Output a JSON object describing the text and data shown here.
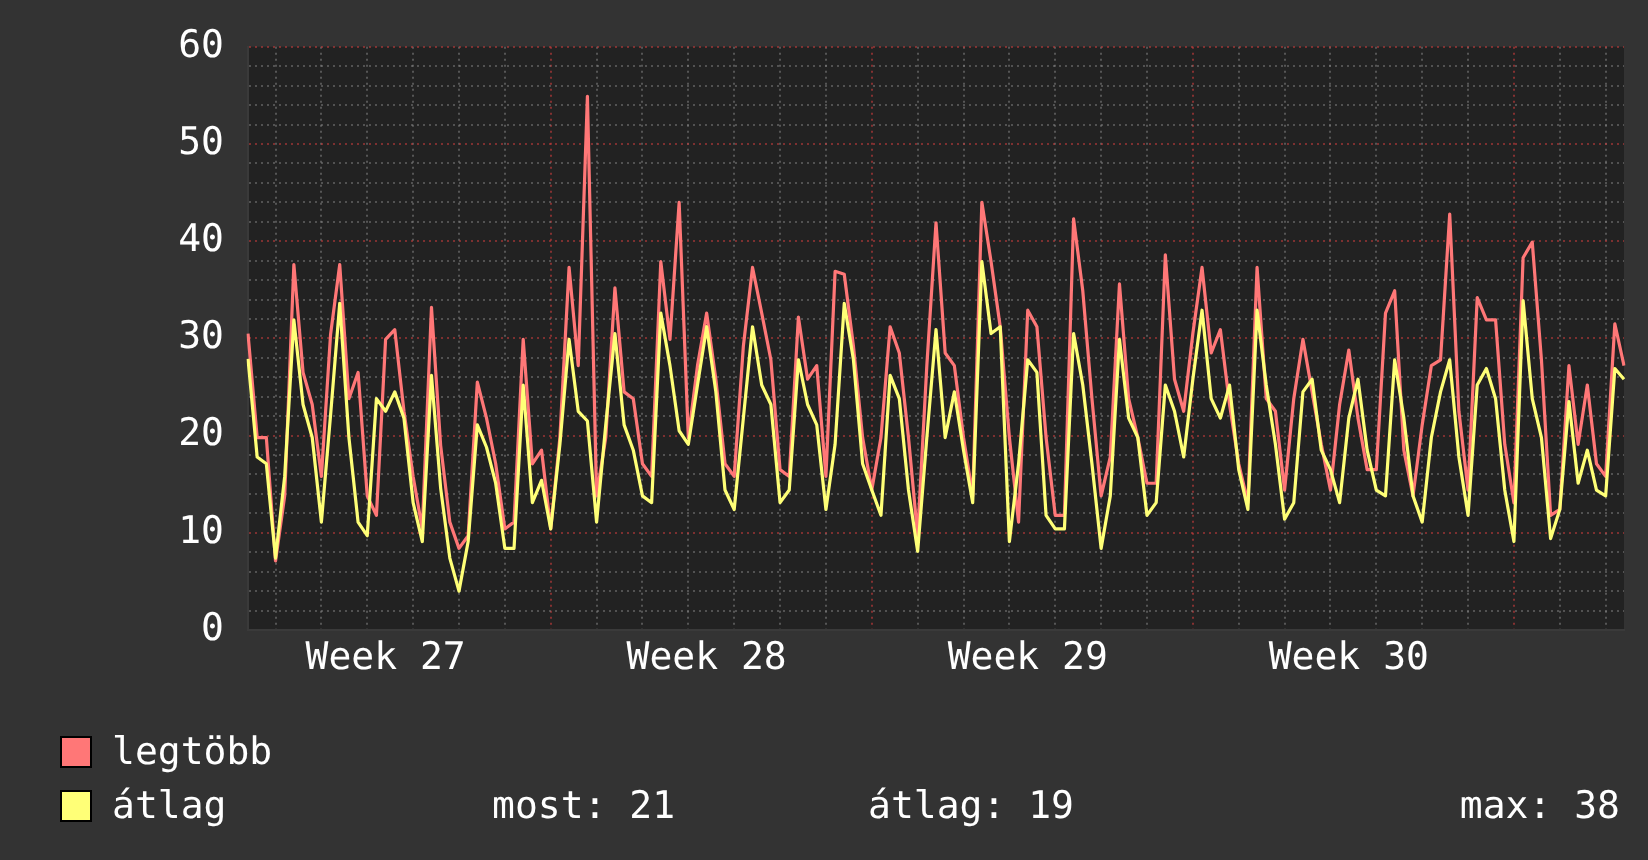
{
  "chart_data": {
    "type": "line",
    "categories": [
      null,
      null,
      null,
      null,
      null,
      null,
      null,
      null,
      null,
      null,
      null,
      null,
      null,
      null,
      null,
      "Week 27",
      null,
      null,
      null,
      null,
      null,
      null,
      null,
      null,
      null,
      null,
      null,
      null,
      null,
      null,
      null,
      null,
      null,
      null,
      null,
      null,
      null,
      null,
      null,
      null,
      null,
      null,
      null,
      null,
      null,
      null,
      null,
      null,
      null,
      null,
      "Week 28",
      null,
      null,
      null,
      null,
      null,
      null,
      null,
      null,
      null,
      null,
      null,
      null,
      null,
      null,
      null,
      null,
      null,
      null,
      null,
      null,
      null,
      null,
      null,
      null,
      null,
      null,
      null,
      null,
      null,
      null,
      null,
      null,
      null,
      null,
      "Week 29",
      null,
      null,
      null,
      null,
      null,
      null,
      null,
      null,
      null,
      null,
      null,
      null,
      null,
      null,
      null,
      null,
      null,
      null,
      null,
      null,
      null,
      null,
      null,
      null,
      null,
      null,
      null,
      null,
      null,
      null,
      null,
      null,
      null,
      null,
      "Week 30",
      null,
      null,
      null,
      null,
      null,
      null,
      null,
      null,
      null,
      null,
      null,
      null,
      null,
      null,
      null,
      null,
      null,
      null,
      null,
      null,
      null,
      null,
      null,
      null,
      null,
      null,
      null,
      null,
      null,
      null
    ],
    "ylim": [
      0,
      60
    ],
    "yticks": [
      0,
      {
        "value": 2,
        "label": null
      },
      {
        "value": 4,
        "label": null
      },
      {
        "value": 6,
        "label": null
      },
      {
        "value": 8,
        "label": null
      },
      10,
      {
        "value": 12,
        "label": null
      },
      {
        "value": 14,
        "label": null
      },
      {
        "value": 16,
        "label": null
      },
      {
        "value": 18,
        "label": null
      },
      20,
      {
        "value": 22,
        "label": null
      },
      {
        "value": 24,
        "label": null
      },
      {
        "value": 26,
        "label": null
      },
      {
        "value": 28,
        "label": null
      },
      30,
      {
        "value": 32,
        "label": null
      },
      {
        "value": 34,
        "label": null
      },
      {
        "value": 36,
        "label": null
      },
      {
        "value": 38,
        "label": null
      },
      40,
      {
        "value": 42,
        "label": null
      },
      {
        "value": 44,
        "label": null
      },
      {
        "value": 46,
        "label": null
      },
      {
        "value": 48,
        "label": null
      },
      50,
      {
        "value": 52,
        "label": null
      },
      {
        "value": 54,
        "label": null
      },
      {
        "value": 56,
        "label": null
      },
      {
        "value": 58,
        "label": null
      },
      60
    ],
    "grid": true,
    "legend": "bottom left",
    "marker": "none",
    "line_style": "solid",
    "annotations": [
      "most: 21",
      "átlag: 19",
      "max: 38"
    ],
    "series": [
      {
        "name": "legtöbb",
        "color": "#ff7777",
        "values": [
          30.5,
          19.8,
          19.8,
          7.1,
          13.8,
          37.6,
          26.5,
          23.2,
          15.8,
          30.4,
          37.6,
          23.8,
          26.5,
          13.8,
          11.8,
          29.9,
          30.9,
          22.5,
          15.8,
          10.4,
          33.2,
          19.0,
          11.1,
          8.4,
          9.7,
          25.5,
          21.8,
          17.1,
          10.4,
          11.1,
          29.9,
          17.1,
          18.5,
          10.4,
          19.8,
          37.3,
          27.2,
          54.9,
          13.8,
          19.8,
          35.2,
          24.5,
          23.8,
          17.1,
          15.8,
          37.9,
          29.9,
          44.0,
          19.8,
          27.2,
          32.6,
          25.8,
          17.1,
          15.8,
          29.2,
          37.3,
          32.6,
          27.8,
          16.5,
          15.8,
          32.2,
          25.8,
          27.2,
          15.8,
          36.9,
          36.6,
          29.2,
          19.8,
          14.4,
          19.8,
          31.2,
          28.5,
          19.8,
          9.7,
          27.2,
          41.9,
          28.5,
          27.2,
          19.8,
          13.8,
          44.0,
          37.9,
          31.2,
          19.8,
          11.1,
          32.9,
          31.2,
          19.8,
          11.8,
          11.8,
          42.3,
          34.9,
          23.8,
          13.8,
          17.8,
          35.6,
          23.8,
          19.8,
          15.1,
          15.1,
          38.6,
          25.8,
          22.5,
          30.5,
          37.3,
          28.5,
          30.9,
          23.2,
          17.1,
          13.1,
          37.3,
          23.8,
          22.5,
          14.4,
          23.8,
          29.9,
          24.5,
          19.1,
          14.4,
          23.2,
          28.8,
          21.8,
          16.5,
          16.5,
          32.6,
          34.9,
          18.5,
          13.8,
          21.1,
          27.2,
          27.8,
          42.8,
          22.5,
          14.4,
          34.2,
          31.9,
          31.9,
          19.1,
          13.1,
          38.3,
          39.9,
          27.8,
          11.8,
          12.4,
          27.2,
          19.1,
          25.2,
          17.1,
          15.8,
          31.5,
          27.2
        ]
      },
      {
        "name": "átlag",
        "color": "#ffff77",
        "values": [
          27.9,
          17.8,
          17.1,
          7.4,
          15.8,
          31.9,
          23.2,
          19.8,
          11.1,
          22.1,
          33.6,
          19.8,
          11.1,
          9.7,
          23.8,
          22.5,
          24.5,
          21.8,
          13.1,
          9.1,
          26.2,
          14.6,
          7.4,
          4.0,
          9.1,
          21.1,
          18.8,
          15.1,
          8.4,
          8.4,
          25.2,
          13.1,
          15.4,
          10.4,
          19.1,
          29.9,
          22.5,
          21.5,
          11.1,
          21.1,
          30.5,
          21.1,
          18.5,
          13.8,
          13.1,
          32.6,
          27.2,
          20.5,
          19.1,
          25.2,
          31.2,
          24.5,
          14.4,
          12.4,
          21.8,
          31.2,
          25.2,
          23.2,
          13.1,
          14.4,
          27.8,
          23.2,
          21.1,
          12.4,
          19.1,
          33.6,
          27.8,
          17.1,
          14.4,
          11.8,
          26.2,
          23.8,
          14.4,
          8.1,
          19.8,
          30.9,
          19.8,
          24.5,
          18.5,
          13.1,
          37.9,
          30.5,
          31.2,
          9.1,
          17.1,
          27.8,
          26.5,
          11.8,
          10.4,
          10.4,
          30.5,
          25.2,
          17.1,
          8.4,
          13.8,
          29.9,
          21.8,
          19.8,
          11.8,
          13.1,
          25.2,
          22.5,
          17.8,
          25.8,
          32.9,
          23.8,
          21.8,
          25.2,
          16.5,
          12.4,
          32.9,
          25.2,
          19.1,
          11.4,
          13.1,
          24.5,
          25.8,
          18.5,
          16.5,
          13.1,
          21.8,
          25.8,
          18.5,
          14.4,
          13.8,
          27.8,
          21.8,
          13.8,
          11.1,
          19.8,
          24.5,
          27.8,
          17.8,
          11.8,
          25.2,
          26.9,
          23.8,
          14.4,
          9.1,
          33.9,
          23.8,
          19.8,
          9.4,
          12.4,
          23.5,
          15.1,
          18.5,
          14.4,
          13.8,
          26.9,
          25.8
        ]
      }
    ]
  }
}
